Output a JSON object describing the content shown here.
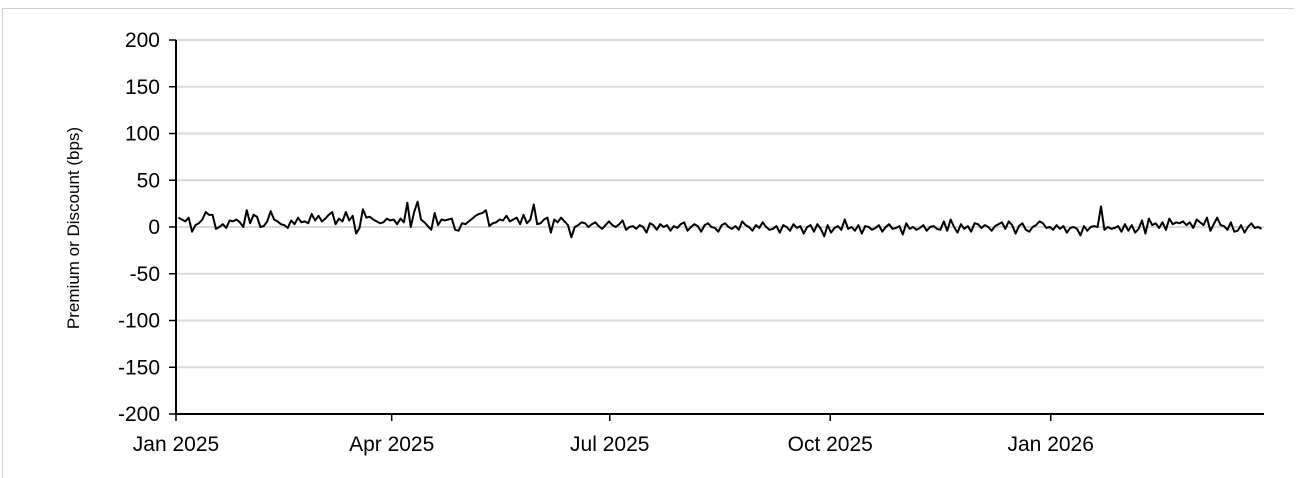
{
  "chart_data": {
    "type": "line",
    "title": "",
    "xlabel": "",
    "ylabel": "Premium or Discount (bps)",
    "ylim": [
      -200,
      200
    ],
    "yticks": [
      200,
      150,
      100,
      50,
      0,
      -50,
      -100,
      -150,
      -200
    ],
    "xlim": [
      "2025-01-01",
      "2026-03-31"
    ],
    "xticks": [
      {
        "date": "2025-01-01",
        "label": "Jan 2025"
      },
      {
        "date": "2025-04-01",
        "label": "Apr 2025"
      },
      {
        "date": "2025-07-01",
        "label": "Jul 2025"
      },
      {
        "date": "2025-10-01",
        "label": "Oct 2025"
      },
      {
        "date": "2026-01-01",
        "label": "Jan 2026"
      }
    ],
    "grid": true,
    "colors": {
      "line": "#000000",
      "grid": "#d9d9d9",
      "axis": "#000000"
    },
    "series": [
      {
        "start_date": "2025-01-02",
        "end_date": "2026-03-30",
        "values": [
          10,
          8,
          6,
          10,
          -5,
          2,
          4,
          8,
          16,
          13,
          13,
          -2,
          0,
          3,
          -1,
          7,
          6,
          8,
          5,
          0,
          18,
          4,
          13,
          11,
          0,
          1,
          6,
          17,
          8,
          6,
          3,
          2,
          -1,
          7,
          3,
          10,
          5,
          6,
          4,
          14,
          7,
          12,
          6,
          9,
          13,
          16,
          3,
          9,
          6,
          16,
          7,
          12,
          -7,
          -1,
          19,
          10,
          11,
          8,
          6,
          4,
          5,
          9,
          7,
          8,
          3,
          9,
          5,
          26,
          0,
          16,
          27,
          8,
          5,
          1,
          -3,
          15,
          2,
          8,
          7,
          8,
          9,
          -3,
          -4,
          4,
          3,
          6,
          9,
          12,
          14,
          15,
          18,
          1,
          4,
          5,
          8,
          7,
          12,
          6,
          8,
          10,
          3,
          13,
          4,
          8,
          24,
          3,
          4,
          8,
          10,
          -6,
          8,
          5,
          10,
          6,
          2,
          -11,
          0,
          2,
          5,
          4,
          0,
          3,
          5,
          1,
          -2,
          2,
          6,
          2,
          0,
          3,
          7,
          -3,
          0,
          1,
          -2,
          2,
          0,
          -6,
          4,
          2,
          -3,
          3,
          0,
          2,
          -4,
          1,
          -1,
          3,
          5,
          -4,
          0,
          3,
          1,
          -5,
          2,
          4,
          0,
          -1,
          -5,
          2,
          4,
          0,
          -2,
          1,
          -3,
          6,
          2,
          0,
          -4,
          2,
          -1,
          5,
          0,
          -3,
          -2,
          1,
          -6,
          2,
          0,
          -4,
          3,
          -1,
          1,
          -7,
          0,
          2,
          -5,
          3,
          -2,
          -10,
          2,
          -6,
          -1,
          1,
          -3,
          8,
          -2,
          0,
          -4,
          2,
          -7,
          1,
          0,
          -3,
          -1,
          2,
          -5,
          0,
          3,
          -2,
          -1,
          1,
          -8,
          4,
          -2,
          0,
          -3,
          -1,
          2,
          -4,
          0,
          1,
          -2,
          -3,
          6,
          -4,
          8,
          0,
          -6,
          3,
          -2,
          1,
          -5,
          4,
          3,
          -1,
          2,
          0,
          -4,
          1,
          3,
          5,
          -2,
          6,
          2,
          -7,
          1,
          4,
          -3,
          -5,
          0,
          2,
          6,
          4,
          -1,
          0,
          -3,
          2,
          -2,
          1,
          -6,
          -1,
          0,
          -2,
          -9,
          1,
          -4,
          0,
          1,
          0,
          22,
          -3,
          0,
          -2,
          -1,
          1,
          -5,
          3,
          -4,
          2,
          -6,
          -2,
          7,
          -7,
          9,
          2,
          4,
          -1,
          5,
          -3,
          9,
          3,
          5,
          4,
          6,
          2,
          5,
          -1,
          8,
          5,
          2,
          10,
          -4,
          3,
          10,
          2,
          1,
          -3,
          5,
          -5,
          -4,
          2,
          -6,
          0,
          4,
          -1,
          0,
          -2
        ]
      }
    ]
  }
}
